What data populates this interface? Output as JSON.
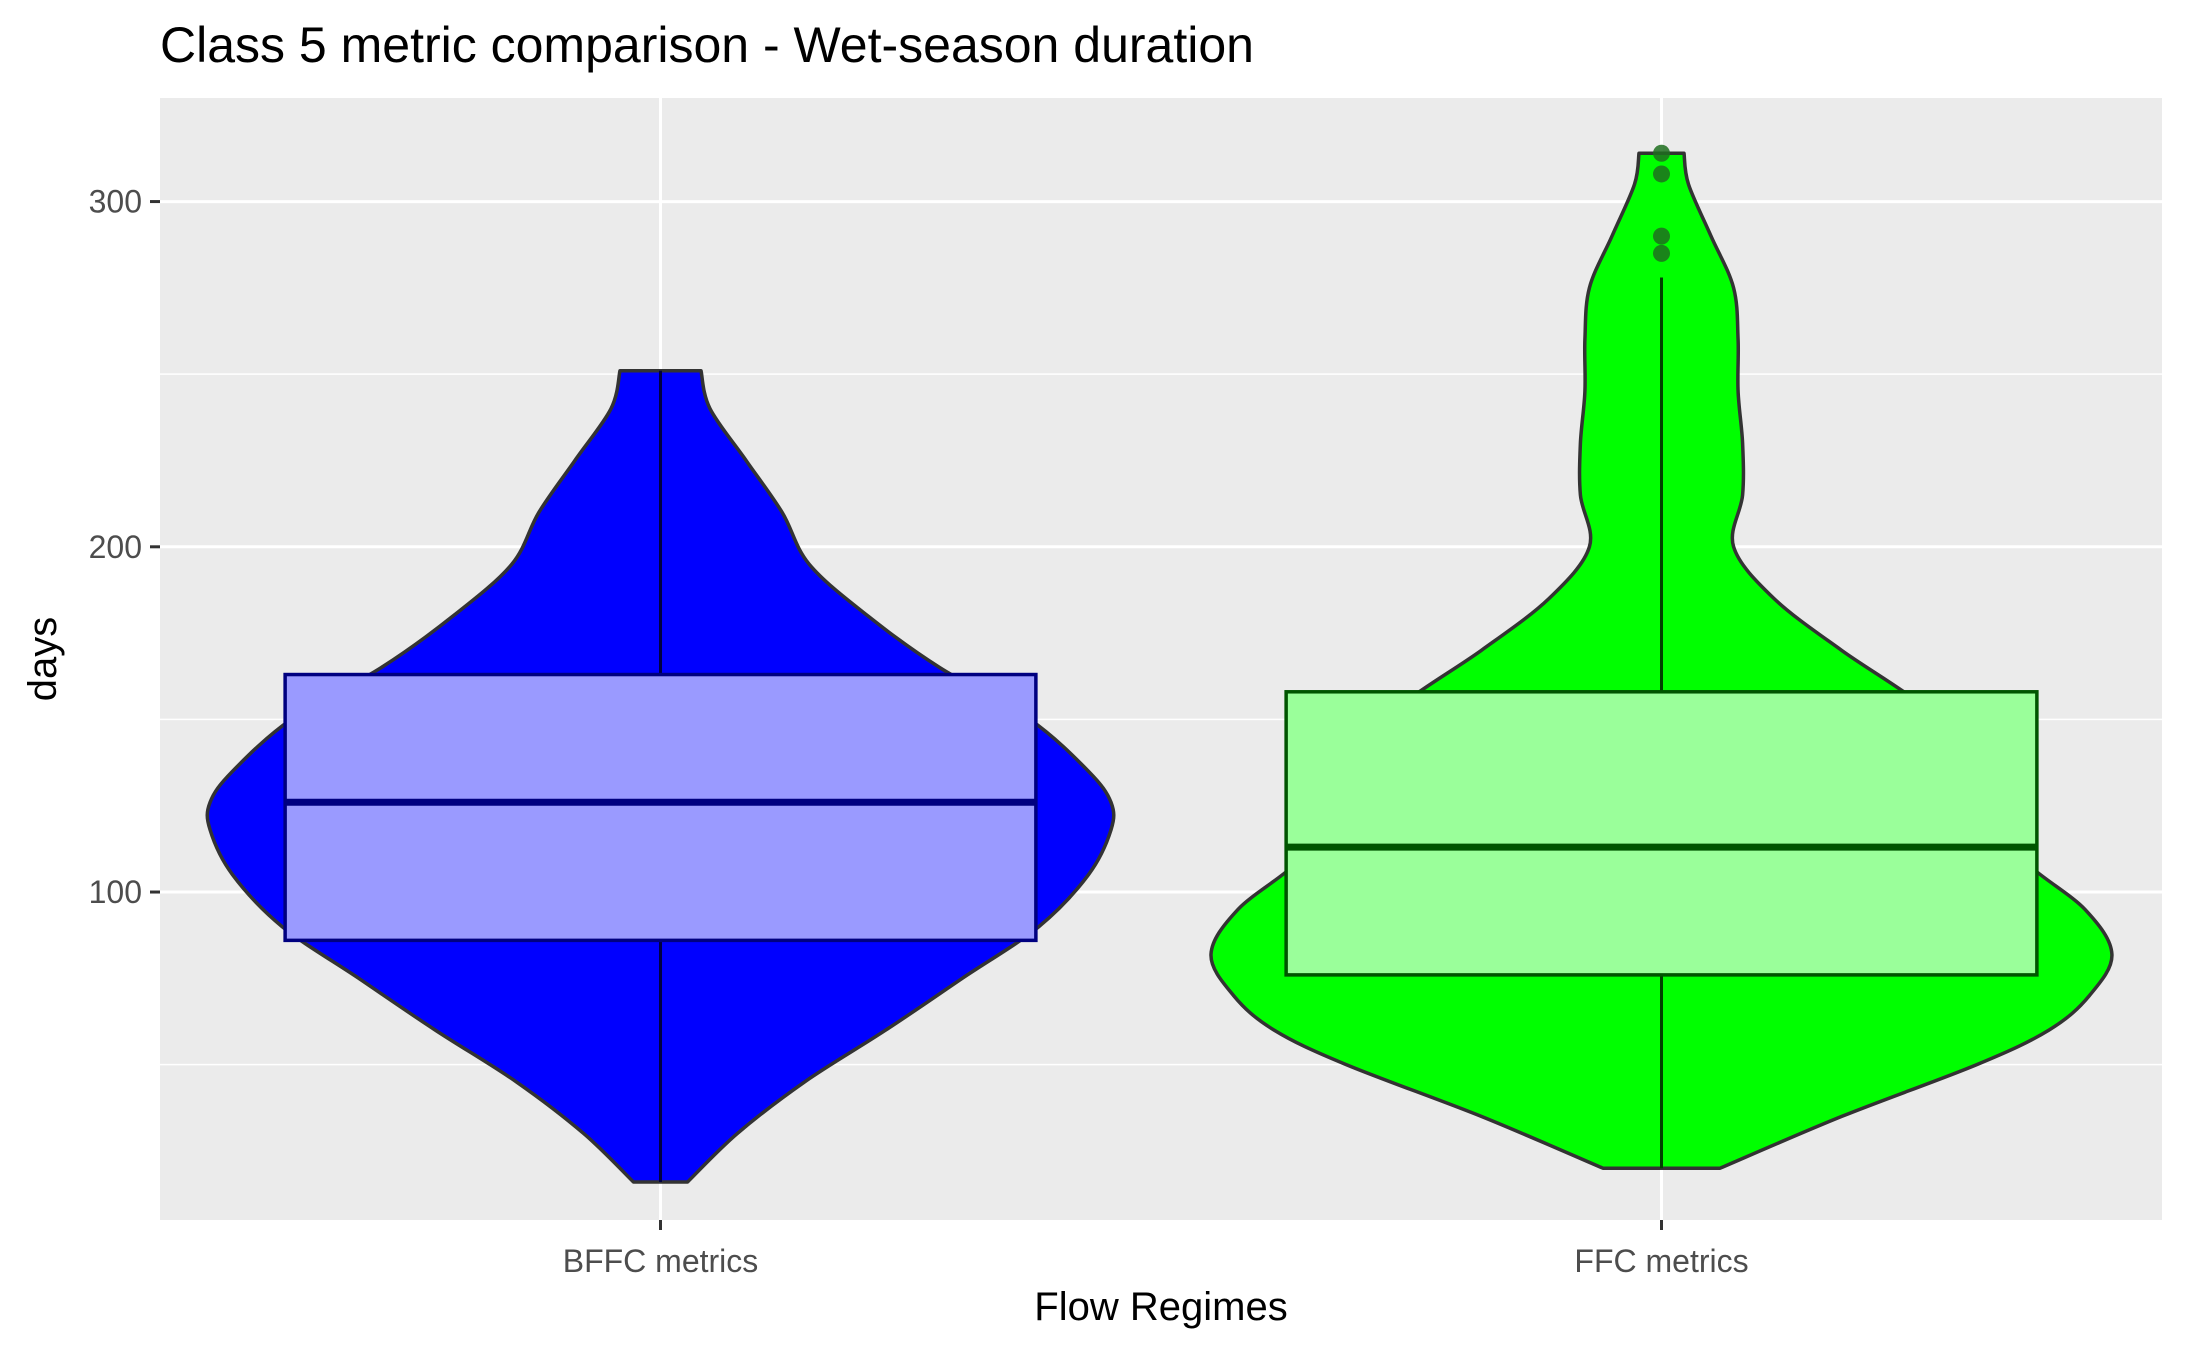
{
  "chart_data": {
    "type": "violin",
    "title": "Class 5 metric comparison - Wet-season duration",
    "xlabel": "Flow Regimes",
    "ylabel": "days",
    "categories": [
      "BFFC metrics",
      "FFC metrics"
    ],
    "ylim": [
      5,
      330
    ],
    "yticks": [
      100,
      200,
      300
    ],
    "grid": true,
    "legend": "none",
    "colors": {
      "panel_background": "#EBEBEB",
      "grid_line": "#FFFFFF",
      "violin_outline": "#333333",
      "tick_mark": "#333333",
      "tick_label": "#4D4D4D"
    },
    "series": [
      {
        "category": "BFFC metrics",
        "fill": "#0000FF",
        "box_fill": "#9A9AFF",
        "box_border": "#000080",
        "whisker": "#000040",
        "min": 16,
        "q1": 86,
        "median": 126,
        "q3": 163,
        "max": 251,
        "outliers": [],
        "density_profile": [
          [
            16,
            0.06
          ],
          [
            30,
            0.17
          ],
          [
            45,
            0.32
          ],
          [
            60,
            0.5
          ],
          [
            75,
            0.67
          ],
          [
            90,
            0.84
          ],
          [
            105,
            0.95
          ],
          [
            118,
            1.0
          ],
          [
            126,
            1.0
          ],
          [
            135,
            0.95
          ],
          [
            150,
            0.82
          ],
          [
            165,
            0.62
          ],
          [
            180,
            0.46
          ],
          [
            195,
            0.33
          ],
          [
            210,
            0.27
          ],
          [
            225,
            0.19
          ],
          [
            240,
            0.11
          ],
          [
            251,
            0.09
          ]
        ]
      },
      {
        "category": "FFC metrics",
        "fill": "#00FF00",
        "box_fill": "#9AFF9A",
        "box_border": "#005500",
        "whisker": "#004000",
        "min": 20,
        "q1": 76,
        "median": 113,
        "q3": 158,
        "max": 278,
        "outliers": [
          285,
          290,
          308,
          314
        ],
        "density_profile": [
          [
            20,
            0.13
          ],
          [
            35,
            0.4
          ],
          [
            50,
            0.7
          ],
          [
            60,
            0.86
          ],
          [
            70,
            0.95
          ],
          [
            82,
            1.0
          ],
          [
            95,
            0.94
          ],
          [
            110,
            0.8
          ],
          [
            125,
            0.76
          ],
          [
            140,
            0.7
          ],
          [
            155,
            0.57
          ],
          [
            170,
            0.4
          ],
          [
            185,
            0.25
          ],
          [
            200,
            0.16
          ],
          [
            215,
            0.18
          ],
          [
            230,
            0.18
          ],
          [
            245,
            0.17
          ],
          [
            260,
            0.17
          ],
          [
            275,
            0.16
          ],
          [
            290,
            0.11
          ],
          [
            305,
            0.06
          ],
          [
            314,
            0.05
          ]
        ]
      }
    ]
  }
}
